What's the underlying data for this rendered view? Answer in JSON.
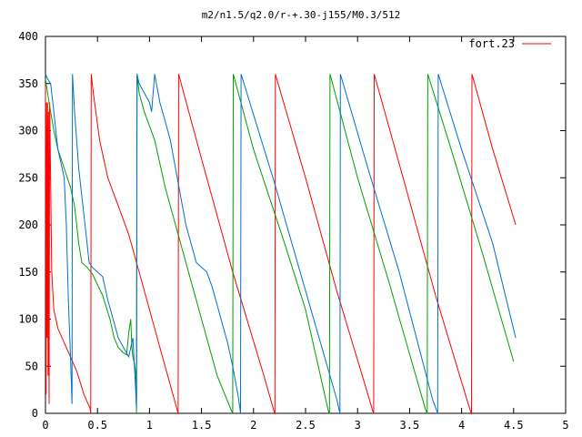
{
  "chart_data": {
    "type": "line",
    "title": "m2/n1.5/q2.0/r-+.30-j155/M0.3/512",
    "xlabel": "",
    "ylabel": "",
    "xlim": [
      0,
      5
    ],
    "ylim": [
      0,
      400
    ],
    "xticks": [
      {
        "value": 0,
        "label": "0"
      },
      {
        "value": 0.5,
        "label": "0.5"
      },
      {
        "value": 1,
        "label": "1"
      },
      {
        "value": 1.5,
        "label": "1.5"
      },
      {
        "value": 2,
        "label": "2"
      },
      {
        "value": 2.5,
        "label": "2.5"
      },
      {
        "value": 3,
        "label": "3"
      },
      {
        "value": 3.5,
        "label": "3.5"
      },
      {
        "value": 4,
        "label": "4"
      },
      {
        "value": 4.5,
        "label": "4.5"
      },
      {
        "value": 5,
        "label": "5"
      }
    ],
    "yticks": [
      {
        "value": 0,
        "label": "0"
      },
      {
        "value": 50,
        "label": "50"
      },
      {
        "value": 100,
        "label": "100"
      },
      {
        "value": 150,
        "label": "150"
      },
      {
        "value": 200,
        "label": "200"
      },
      {
        "value": 250,
        "label": "250"
      },
      {
        "value": 300,
        "label": "300"
      },
      {
        "value": 350,
        "label": "350"
      },
      {
        "value": 400,
        "label": "400"
      }
    ],
    "grid": false,
    "legend_position": "top-right",
    "series": [
      {
        "name": "fort.23",
        "color": "#ff0000",
        "points": [
          [
            0.0,
            350
          ],
          [
            0.005,
            20
          ],
          [
            0.01,
            330
          ],
          [
            0.015,
            80
          ],
          [
            0.02,
            330
          ],
          [
            0.025,
            40
          ],
          [
            0.03,
            320
          ],
          [
            0.035,
            10
          ],
          [
            0.04,
            330
          ],
          [
            0.06,
            150
          ],
          [
            0.08,
            110
          ],
          [
            0.12,
            90
          ],
          [
            0.2,
            70
          ],
          [
            0.3,
            45
          ],
          [
            0.37,
            20
          ],
          [
            0.43,
            5
          ],
          [
            0.435,
            0
          ],
          [
            0.44,
            360
          ],
          [
            0.46,
            340
          ],
          [
            0.52,
            290
          ],
          [
            0.6,
            250
          ],
          [
            0.7,
            220
          ],
          [
            0.8,
            190
          ],
          [
            0.9,
            150
          ],
          [
            1.0,
            110
          ],
          [
            1.1,
            70
          ],
          [
            1.2,
            30
          ],
          [
            1.27,
            2
          ],
          [
            1.275,
            0
          ],
          [
            1.28,
            360
          ],
          [
            1.5,
            270
          ],
          [
            1.8,
            150
          ],
          [
            2.1,
            40
          ],
          [
            2.2,
            1
          ],
          [
            2.205,
            0
          ],
          [
            2.21,
            360
          ],
          [
            2.5,
            250
          ],
          [
            2.8,
            130
          ],
          [
            3.1,
            20
          ],
          [
            3.15,
            1
          ],
          [
            3.155,
            0
          ],
          [
            3.16,
            360
          ],
          [
            3.45,
            245
          ],
          [
            3.75,
            125
          ],
          [
            4.05,
            15
          ],
          [
            4.09,
            1
          ],
          [
            4.095,
            0
          ],
          [
            4.1,
            360
          ],
          [
            4.3,
            280
          ],
          [
            4.52,
            200
          ]
        ]
      },
      {
        "name": "",
        "color": "#00a000",
        "points": [
          [
            0.0,
            355
          ],
          [
            0.02,
            340
          ],
          [
            0.05,
            320
          ],
          [
            0.08,
            300
          ],
          [
            0.12,
            280
          ],
          [
            0.18,
            260
          ],
          [
            0.24,
            240
          ],
          [
            0.28,
            220
          ],
          [
            0.3,
            200
          ],
          [
            0.32,
            180
          ],
          [
            0.35,
            160
          ],
          [
            0.4,
            155
          ],
          [
            0.45,
            148
          ],
          [
            0.55,
            125
          ],
          [
            0.62,
            100
          ],
          [
            0.66,
            80
          ],
          [
            0.7,
            70
          ],
          [
            0.74,
            65
          ],
          [
            0.78,
            62
          ],
          [
            0.8,
            85
          ],
          [
            0.82,
            100
          ],
          [
            0.83,
            70
          ],
          [
            0.84,
            60
          ],
          [
            0.86,
            50
          ],
          [
            0.87,
            40
          ],
          [
            0.875,
            0
          ],
          [
            0.88,
            360
          ],
          [
            0.9,
            340
          ],
          [
            0.95,
            320
          ],
          [
            1.05,
            290
          ],
          [
            1.15,
            240
          ],
          [
            1.25,
            200
          ],
          [
            1.35,
            160
          ],
          [
            1.45,
            120
          ],
          [
            1.55,
            80
          ],
          [
            1.65,
            40
          ],
          [
            1.78,
            5
          ],
          [
            1.8,
            0
          ],
          [
            1.805,
            360
          ],
          [
            2.0,
            280
          ],
          [
            2.3,
            180
          ],
          [
            2.5,
            110
          ],
          [
            2.72,
            2
          ],
          [
            2.73,
            0
          ],
          [
            2.735,
            360
          ],
          [
            3.0,
            250
          ],
          [
            3.3,
            140
          ],
          [
            3.65,
            5
          ],
          [
            3.67,
            0
          ],
          [
            3.675,
            360
          ],
          [
            3.9,
            280
          ],
          [
            4.2,
            170
          ],
          [
            4.5,
            55
          ]
        ]
      },
      {
        "name": "",
        "color": "#0070d0",
        "points": [
          [
            0.0,
            360
          ],
          [
            0.02,
            355
          ],
          [
            0.05,
            350
          ],
          [
            0.08,
            320
          ],
          [
            0.1,
            300
          ],
          [
            0.12,
            280
          ],
          [
            0.15,
            265
          ],
          [
            0.18,
            250
          ],
          [
            0.2,
            200
          ],
          [
            0.22,
            120
          ],
          [
            0.24,
            60
          ],
          [
            0.255,
            10
          ],
          [
            0.26,
            360
          ],
          [
            0.28,
            320
          ],
          [
            0.3,
            290
          ],
          [
            0.32,
            260
          ],
          [
            0.35,
            230
          ],
          [
            0.38,
            200
          ],
          [
            0.4,
            180
          ],
          [
            0.42,
            160
          ],
          [
            0.45,
            155
          ],
          [
            0.5,
            150
          ],
          [
            0.55,
            145
          ],
          [
            0.6,
            120
          ],
          [
            0.65,
            100
          ],
          [
            0.7,
            80
          ],
          [
            0.75,
            70
          ],
          [
            0.8,
            60
          ],
          [
            0.84,
            80
          ],
          [
            0.86,
            40
          ],
          [
            0.875,
            5
          ],
          [
            0.88,
            360
          ],
          [
            0.9,
            350
          ],
          [
            0.95,
            340
          ],
          [
            1.0,
            330
          ],
          [
            1.02,
            320
          ],
          [
            1.05,
            360
          ],
          [
            1.1,
            330
          ],
          [
            1.15,
            310
          ],
          [
            1.2,
            290
          ],
          [
            1.25,
            260
          ],
          [
            1.3,
            230
          ],
          [
            1.35,
            200
          ],
          [
            1.4,
            180
          ],
          [
            1.45,
            160
          ],
          [
            1.5,
            155
          ],
          [
            1.55,
            150
          ],
          [
            1.6,
            135
          ],
          [
            1.65,
            115
          ],
          [
            1.7,
            95
          ],
          [
            1.75,
            75
          ],
          [
            1.8,
            50
          ],
          [
            1.85,
            20
          ],
          [
            1.87,
            5
          ],
          [
            1.875,
            0
          ],
          [
            1.88,
            360
          ],
          [
            2.2,
            245
          ],
          [
            2.5,
            130
          ],
          [
            2.8,
            15
          ],
          [
            2.83,
            0
          ],
          [
            2.835,
            360
          ],
          [
            3.1,
            260
          ],
          [
            3.4,
            150
          ],
          [
            3.72,
            15
          ],
          [
            3.77,
            0
          ],
          [
            3.775,
            360
          ],
          [
            4.0,
            280
          ],
          [
            4.3,
            180
          ],
          [
            4.52,
            80
          ]
        ]
      }
    ]
  }
}
